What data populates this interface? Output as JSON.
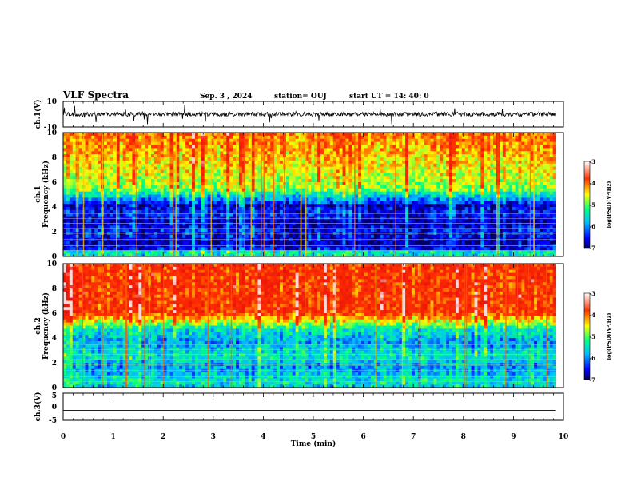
{
  "header": {
    "title": "VLF Spectra",
    "date": "Sep. 3 , 2024",
    "station": "station= OUJ",
    "start": "start UT =  14: 40: 0"
  },
  "chart_data": [
    {
      "id": "ch1-waveform",
      "type": "line",
      "ylabel": "ch.1(V)",
      "ylim": [
        -10,
        10
      ],
      "yticks": [
        "10",
        "-10"
      ],
      "baseline": 0,
      "xlim": [
        0,
        10
      ],
      "data_end": 9.85
    },
    {
      "id": "ch1-spectrogram",
      "type": "heatmap",
      "ylabel": "ch.1\nFrequency (kHz)",
      "ylim": [
        0,
        10
      ],
      "yticks": [
        "0",
        "2",
        "4",
        "6",
        "8",
        "10"
      ],
      "xlim": [
        0,
        10
      ],
      "data_end": 9.85,
      "colorbar": {
        "label": "log(PSD)(V²/Hz)",
        "range": [
          -7,
          -3
        ],
        "ticks": [
          "-3",
          "-4",
          "-5",
          "-6",
          "-7"
        ]
      }
    },
    {
      "id": "ch2-spectrogram",
      "type": "heatmap",
      "ylabel": "ch.2\nFrequency (kHz)",
      "ylim": [
        0,
        10
      ],
      "yticks": [
        "0",
        "2",
        "4",
        "6",
        "8",
        "10"
      ],
      "xlim": [
        0,
        10
      ],
      "data_end": 9.85,
      "colorbar": {
        "label": "log(PSD)(V²/Hz)",
        "range": [
          -7,
          -3
        ],
        "ticks": [
          "-3",
          "-4",
          "-5",
          "-6",
          "-7"
        ]
      }
    },
    {
      "id": "ch3-waveform",
      "type": "line",
      "ylabel": "ch.3(V)",
      "ylim": [
        -5,
        5
      ],
      "yticks": [
        "5",
        "0",
        "-5"
      ],
      "constant_value": -1.4,
      "xlim": [
        0,
        10
      ],
      "data_end": 9.85
    }
  ],
  "xaxis": {
    "label": "Time (min)",
    "ticks": [
      "0",
      "1",
      "2",
      "3",
      "4",
      "5",
      "6",
      "7",
      "8",
      "9",
      "10"
    ]
  }
}
